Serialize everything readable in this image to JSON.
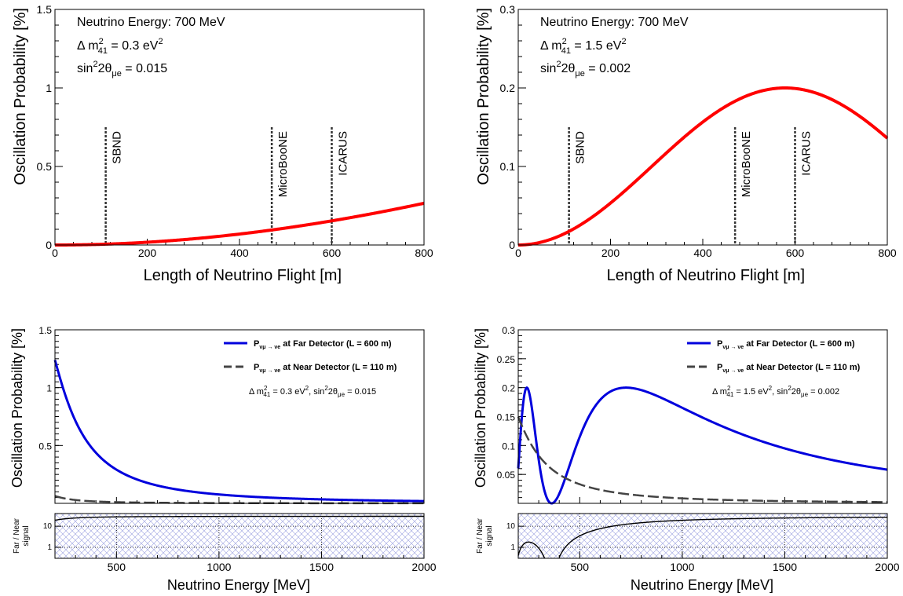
{
  "chart_data": [
    {
      "id": "tl",
      "type": "line",
      "annotations": [
        "Neutrino Energy: 700 MeV",
        "Δ m²₄₁ = 0.3 eV²",
        "sin²2θμe = 0.015"
      ],
      "ann_lines": [
        {
          "main": "Neutrino Energy: 700 MeV"
        },
        {
          "pre": "Δ m",
          "sup": "2",
          "sub": "41",
          "post": " = 0.3 eV",
          "sup2": "2"
        },
        {
          "pre": "sin",
          "sup": "2",
          "mid": "2θ",
          "sub": "μe",
          "post": " = 0.015"
        }
      ],
      "xlabel": "Length of Neutrino Flight [m]",
      "ylabel": "Oscillation Probability [%]",
      "xlim": [
        0,
        800
      ],
      "ylim": [
        0,
        1.5
      ],
      "xticks": [
        "0",
        "200",
        "400",
        "600",
        "800"
      ],
      "yticks": [
        "0",
        "0.5",
        "1",
        "1.5"
      ],
      "detectors": [
        {
          "name": "SBND",
          "x": 110
        },
        {
          "name": "MicroBooNE",
          "x": 470
        },
        {
          "name": "ICARUS",
          "x": 600
        }
      ],
      "series": [
        {
          "color": "#ff0000",
          "params": {
            "dm2": 0.3,
            "s22": 0.015,
            "E": 0.7
          }
        }
      ]
    },
    {
      "id": "tr",
      "type": "line",
      "annotations": [
        "Neutrino Energy: 700 MeV",
        "Δ m²₄₁ = 1.5 eV²",
        "sin²2θμe = 0.002"
      ],
      "ann_lines": [
        {
          "main": "Neutrino Energy: 700 MeV"
        },
        {
          "pre": "Δ m",
          "sup": "2",
          "sub": "41",
          "post": " = 1.5 eV",
          "sup2": "2"
        },
        {
          "pre": "sin",
          "sup": "2",
          "mid": "2θ",
          "sub": "μe",
          "post": " = 0.002"
        }
      ],
      "xlabel": "Length of Neutrino Flight [m]",
      "ylabel": "Oscillation Probability [%]",
      "xlim": [
        0,
        800
      ],
      "ylim": [
        0,
        0.3
      ],
      "xticks": [
        "0",
        "200",
        "400",
        "600",
        "800"
      ],
      "yticks": [
        "0",
        "0.1",
        "0.2",
        "0.3"
      ],
      "detectors": [
        {
          "name": "SBND",
          "x": 110
        },
        {
          "name": "MicroBooNE",
          "x": 470
        },
        {
          "name": "ICARUS",
          "x": 600
        }
      ],
      "series": [
        {
          "color": "#ff0000",
          "params": {
            "dm2": 1.5,
            "s22": 0.002,
            "E": 0.7
          }
        }
      ]
    },
    {
      "id": "bl",
      "type": "line",
      "xlabel": "Neutrino Energy [MeV]",
      "ylabel": "Oscillation Probability [%]",
      "ratio_ylabel": [
        "Far / Near",
        "signal"
      ],
      "xlim": [
        200,
        2000
      ],
      "ylim": [
        0,
        1.5
      ],
      "xticks": [
        "500",
        "1000",
        "1500",
        "2000"
      ],
      "yticks": [
        "0.5",
        "1",
        "1.5"
      ],
      "ratio_yticks": [
        "1",
        "10"
      ],
      "legend": [
        {
          "label": "at Far Detector (L = 600 m)",
          "color": "#0000dd",
          "style": "solid"
        },
        {
          "label": "at Near Detector (L = 110 m)",
          "color": "#444444",
          "style": "dashed"
        }
      ],
      "legend_symbol": {
        "p": "P",
        "sub": "νμ → νe"
      },
      "info": "Δ m²₄₁ = 0.3 eV², sin²2θμe = 0.015",
      "info_parts": {
        "a": "Δ m",
        "sup": "2",
        "sub": "41",
        "b": " = 0.3 eV",
        "sup2": "2",
        "c": ",   sin",
        "sup3": "2",
        "d": "2θ",
        "sub2": "μe",
        "e": " = 0.015"
      },
      "series": [
        {
          "name": "Far",
          "L": 600,
          "color": "#0000dd",
          "params": {
            "dm2": 0.3,
            "s22": 0.015
          }
        },
        {
          "name": "Near",
          "L": 110,
          "color": "#444444",
          "params": {
            "dm2": 0.3,
            "s22": 0.015
          }
        }
      ]
    },
    {
      "id": "br",
      "type": "line",
      "xlabel": "Neutrino Energy [MeV]",
      "ylabel": "Oscillation Probability [%]",
      "ratio_ylabel": [
        "Far / Near",
        "signal"
      ],
      "xlim": [
        200,
        2000
      ],
      "ylim": [
        0,
        0.3
      ],
      "xticks": [
        "500",
        "1000",
        "1500",
        "2000"
      ],
      "yticks": [
        "0.05",
        "0.1",
        "0.15",
        "0.2",
        "0.25",
        "0.3"
      ],
      "ratio_yticks": [
        "1",
        "10"
      ],
      "legend": [
        {
          "label": "at Far Detector (L = 600 m)",
          "color": "#0000dd",
          "style": "solid"
        },
        {
          "label": "at Near Detector (L = 110 m)",
          "color": "#444444",
          "style": "dashed"
        }
      ],
      "legend_symbol": {
        "p": "P",
        "sub": "νμ → νe"
      },
      "info": "Δ m²₄₁ = 1.5 eV², sin²2θμe = 0.002",
      "info_parts": {
        "a": "Δ m",
        "sup": "2",
        "sub": "41",
        "b": " = 1.5 eV",
        "sup2": "2",
        "c": ",   sin",
        "sup3": "2",
        "d": "2θ",
        "sub2": "μe",
        "e": " = 0.002"
      },
      "series": [
        {
          "name": "Far",
          "L": 600,
          "color": "#0000dd",
          "params": {
            "dm2": 1.5,
            "s22": 0.002
          }
        },
        {
          "name": "Near",
          "L": 110,
          "color": "#444444",
          "params": {
            "dm2": 1.5,
            "s22": 0.002
          }
        }
      ]
    }
  ],
  "style": {
    "hatch_color": "#9aa0e0",
    "axis_color": "#000000"
  }
}
